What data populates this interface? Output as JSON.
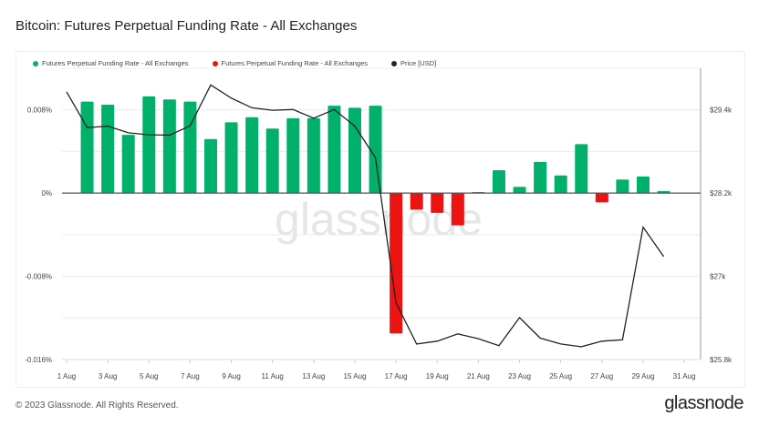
{
  "title": "Bitcoin: Futures Perpetual Funding Rate - All Exchanges",
  "footer": "© 2023 Glassnode. All Rights Reserved.",
  "logo": "glassnode",
  "watermark": "glassnode",
  "colors": {
    "positive": "#00b06b",
    "negative": "#ec1313",
    "price": "#222222",
    "grid": "#ececec"
  },
  "chart_data": {
    "type": "bar+line",
    "legend": [
      {
        "label": "Futures Perpetual Funding Rate - All Exchanges",
        "color": "#00b06b"
      },
      {
        "label": "Futures Perpetual Funding Rate - All Exchanges",
        "color": "#ec1313"
      },
      {
        "label": "Price [USD]",
        "color": "#222222"
      }
    ],
    "legend_position": "top-left",
    "x_ticks": [
      "1 Aug",
      "3 Aug",
      "5 Aug",
      "7 Aug",
      "9 Aug",
      "11 Aug",
      "13 Aug",
      "15 Aug",
      "17 Aug",
      "19 Aug",
      "21 Aug",
      "23 Aug",
      "25 Aug",
      "27 Aug",
      "29 Aug",
      "31 Aug"
    ],
    "y_left": {
      "ticks": [
        "0.008%",
        "0%",
        "-0.008%",
        "-0.016%"
      ],
      "tick_values": [
        0.008,
        0,
        -0.008,
        -0.016
      ],
      "range": [
        -0.016,
        0.012
      ],
      "unit": "%"
    },
    "y_right": {
      "ticks": [
        "$29.4k",
        "$28.2k",
        "$27k",
        "$25.8k"
      ],
      "tick_values": [
        29400,
        28200,
        27000,
        25800
      ],
      "range": [
        25800,
        30000
      ]
    },
    "grid": true,
    "funding_rate": {
      "dates": [
        "2 Aug",
        "3 Aug",
        "4 Aug",
        "5 Aug",
        "6 Aug",
        "7 Aug",
        "8 Aug",
        "9 Aug",
        "10 Aug",
        "11 Aug",
        "12 Aug",
        "13 Aug",
        "14 Aug",
        "15 Aug",
        "16 Aug",
        "17 Aug",
        "18 Aug",
        "19 Aug",
        "20 Aug",
        "21 Aug",
        "22 Aug",
        "23 Aug",
        "24 Aug",
        "25 Aug",
        "26 Aug",
        "27 Aug",
        "28 Aug",
        "29 Aug",
        "30 Aug"
      ],
      "values": [
        0.0088,
        0.0085,
        0.0056,
        0.0093,
        0.009,
        0.0088,
        0.0052,
        0.0068,
        0.0073,
        0.0062,
        0.0072,
        0.0072,
        0.0084,
        0.0082,
        0.0084,
        -0.0135,
        -0.0016,
        -0.0019,
        -0.0031,
        0.0001,
        0.0022,
        0.0006,
        0.003,
        0.0017,
        0.0047,
        -0.0009,
        0.0013,
        0.0016,
        0.0002
      ]
    },
    "price": {
      "dates": [
        "1 Aug",
        "2 Aug",
        "3 Aug",
        "4 Aug",
        "5 Aug",
        "6 Aug",
        "7 Aug",
        "8 Aug",
        "9 Aug",
        "10 Aug",
        "11 Aug",
        "12 Aug",
        "13 Aug",
        "14 Aug",
        "15 Aug",
        "16 Aug",
        "17 Aug",
        "18 Aug",
        "19 Aug",
        "20 Aug",
        "21 Aug",
        "22 Aug",
        "23 Aug",
        "24 Aug",
        "25 Aug",
        "26 Aug",
        "27 Aug",
        "28 Aug",
        "29 Aug",
        "30 Aug"
      ],
      "values": [
        29660,
        29145,
        29165,
        29070,
        29040,
        29035,
        29170,
        29760,
        29570,
        29430,
        29395,
        29405,
        29280,
        29405,
        29165,
        28710,
        26620,
        26025,
        26065,
        26170,
        26100,
        26000,
        26405,
        26110,
        26025,
        25985,
        26065,
        26085,
        27710,
        27285
      ]
    }
  }
}
